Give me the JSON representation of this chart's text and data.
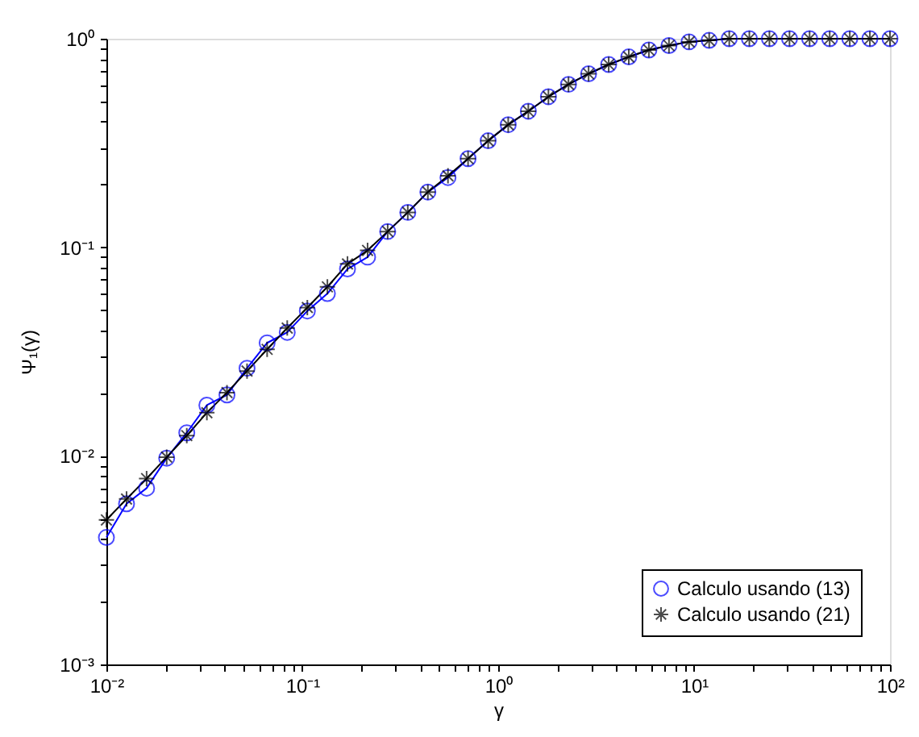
{
  "chart_data": {
    "type": "line",
    "xlabel": "γ",
    "ylabel": "Ψ₁(γ)",
    "x": [
      0.01,
      0.01267,
      0.01604,
      0.02031,
      0.02572,
      0.03257,
      0.04125,
      0.05223,
      0.06614,
      0.08377,
      0.1061,
      0.1343,
      0.1701,
      0.2154,
      0.2728,
      0.3455,
      0.4375,
      0.5541,
      0.7017,
      0.8886,
      1.125,
      1.425,
      1.805,
      2.285,
      2.894,
      3.665,
      4.642,
      5.878,
      7.444,
      9.427,
      11.94,
      15.12,
      19.15,
      24.24,
      30.7,
      38.88,
      49.24,
      62.35,
      78.96,
      100
    ],
    "series": [
      {
        "name": "Calculo usando (13)",
        "color": "#0000ff",
        "marker": "circle",
        "values": [
          0.00406,
          0.00589,
          0.007,
          0.00975,
          0.0129,
          0.0175,
          0.0196,
          0.0263,
          0.0348,
          0.0391,
          0.0495,
          0.06,
          0.0787,
          0.0897,
          0.119,
          0.147,
          0.184,
          0.216,
          0.266,
          0.324,
          0.387,
          0.449,
          0.527,
          0.604,
          0.679,
          0.752,
          0.818,
          0.883,
          0.927,
          0.966,
          0.982,
          1,
          1,
          1,
          1,
          1,
          1,
          1,
          1,
          1
        ]
      },
      {
        "name": "Calculo usando (21)",
        "color": "#000000",
        "marker": "cross",
        "values": [
          0.00493,
          0.00621,
          0.00778,
          0.00986,
          0.0125,
          0.0161,
          0.0201,
          0.0255,
          0.0324,
          0.041,
          0.0514,
          0.0646,
          0.0832,
          0.0966,
          0.119,
          0.147,
          0.184,
          0.22,
          0.266,
          0.324,
          0.387,
          0.449,
          0.527,
          0.604,
          0.679,
          0.752,
          0.818,
          0.883,
          0.927,
          0.966,
          0.982,
          1,
          1,
          1,
          1,
          1,
          1,
          1,
          1,
          1
        ]
      }
    ],
    "log": "xy",
    "xlim": [
      0.01,
      100
    ],
    "ylim": [
      0.001,
      1
    ],
    "xticks": [
      {
        "value": 0.01,
        "label": "10⁻²"
      },
      {
        "value": 0.02,
        "label": null
      },
      {
        "value": 0.03,
        "label": null
      },
      {
        "value": 0.04,
        "label": null
      },
      {
        "value": 0.05,
        "label": null
      },
      {
        "value": 0.06,
        "label": null
      },
      {
        "value": 0.07,
        "label": null
      },
      {
        "value": 0.08,
        "label": null
      },
      {
        "value": 0.09,
        "label": null
      },
      {
        "value": 0.1,
        "label": "10⁻¹"
      },
      {
        "value": 0.2,
        "label": null
      },
      {
        "value": 0.3,
        "label": null
      },
      {
        "value": 0.4,
        "label": null
      },
      {
        "value": 0.5,
        "label": null
      },
      {
        "value": 0.6,
        "label": null
      },
      {
        "value": 0.7,
        "label": null
      },
      {
        "value": 0.8,
        "label": null
      },
      {
        "value": 0.9,
        "label": null
      },
      {
        "value": 1,
        "label": "10⁰"
      },
      {
        "value": 2,
        "label": null
      },
      {
        "value": 3,
        "label": null
      },
      {
        "value": 4,
        "label": null
      },
      {
        "value": 5,
        "label": null
      },
      {
        "value": 6,
        "label": null
      },
      {
        "value": 7,
        "label": null
      },
      {
        "value": 8,
        "label": null
      },
      {
        "value": 9,
        "label": null
      },
      {
        "value": 10,
        "label": "10¹"
      },
      {
        "value": 20,
        "label": null
      },
      {
        "value": 30,
        "label": null
      },
      {
        "value": 40,
        "label": null
      },
      {
        "value": 50,
        "label": null
      },
      {
        "value": 60,
        "label": null
      },
      {
        "value": 70,
        "label": null
      },
      {
        "value": 80,
        "label": null
      },
      {
        "value": 90,
        "label": null
      },
      {
        "value": 100,
        "label": "10²"
      }
    ],
    "yticks": [
      {
        "value": 0.001,
        "label": "10⁻³"
      },
      {
        "value": 0.002,
        "label": null
      },
      {
        "value": 0.003,
        "label": null
      },
      {
        "value": 0.004,
        "label": null
      },
      {
        "value": 0.005,
        "label": null
      },
      {
        "value": 0.006,
        "label": null
      },
      {
        "value": 0.007,
        "label": null
      },
      {
        "value": 0.008,
        "label": null
      },
      {
        "value": 0.009,
        "label": null
      },
      {
        "value": 0.01,
        "label": "10⁻²"
      },
      {
        "value": 0.02,
        "label": null
      },
      {
        "value": 0.03,
        "label": null
      },
      {
        "value": 0.04,
        "label": null
      },
      {
        "value": 0.05,
        "label": null
      },
      {
        "value": 0.06,
        "label": null
      },
      {
        "value": 0.07,
        "label": null
      },
      {
        "value": 0.08,
        "label": null
      },
      {
        "value": 0.09,
        "label": null
      },
      {
        "value": 0.1,
        "label": "10⁻¹"
      },
      {
        "value": 0.2,
        "label": null
      },
      {
        "value": 0.3,
        "label": null
      },
      {
        "value": 0.4,
        "label": null
      },
      {
        "value": 0.5,
        "label": null
      },
      {
        "value": 0.6,
        "label": null
      },
      {
        "value": 0.7,
        "label": null
      },
      {
        "value": 0.8,
        "label": null
      },
      {
        "value": 0.9,
        "label": null
      },
      {
        "value": 1,
        "label": "10⁰"
      }
    ],
    "grid": false,
    "legend": "bottom right",
    "line_style": "solid"
  }
}
